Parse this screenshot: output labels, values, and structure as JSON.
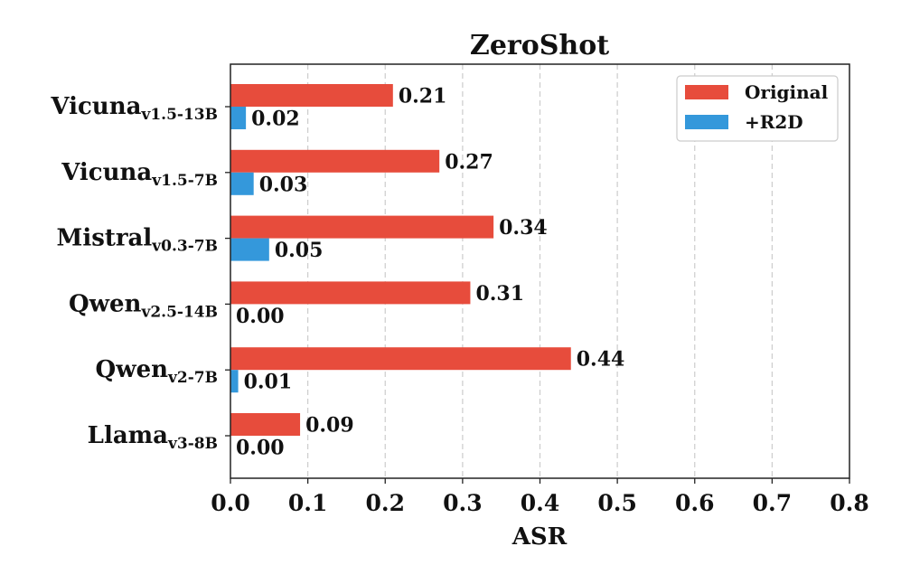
{
  "chart_data": {
    "type": "bar",
    "orientation": "horizontal",
    "title": "ZeroShot",
    "xlabel": "ASR",
    "ylabel": "",
    "xlim": [
      0,
      0.8
    ],
    "xticks": [
      "0.0",
      "0.1",
      "0.2",
      "0.3",
      "0.4",
      "0.5",
      "0.6",
      "0.7",
      "0.8"
    ],
    "grid": "vertical dashed",
    "legend_position": "top-right",
    "categories": [
      {
        "name": "Vicuna",
        "sub": "v1.5-13B"
      },
      {
        "name": "Vicuna",
        "sub": "v1.5-7B"
      },
      {
        "name": "Mistral",
        "sub": "v0.3-7B"
      },
      {
        "name": "Qwen",
        "sub": "v2.5-14B"
      },
      {
        "name": "Qwen",
        "sub": "v2-7B"
      },
      {
        "name": "Llama",
        "sub": "v3-8B"
      }
    ],
    "series": [
      {
        "name": "Original",
        "color": "#e74c3c",
        "values": [
          0.21,
          0.27,
          0.34,
          0.31,
          0.44,
          0.09
        ],
        "labels": [
          "0.21",
          "0.27",
          "0.34",
          "0.31",
          "0.44",
          "0.09"
        ]
      },
      {
        "name": "+R2D",
        "color": "#3498db",
        "values": [
          0.02,
          0.03,
          0.05,
          0.0,
          0.01,
          0.0
        ],
        "labels": [
          "0.02",
          "0.03",
          "0.05",
          "0.00",
          "0.01",
          "0.00"
        ]
      }
    ]
  }
}
